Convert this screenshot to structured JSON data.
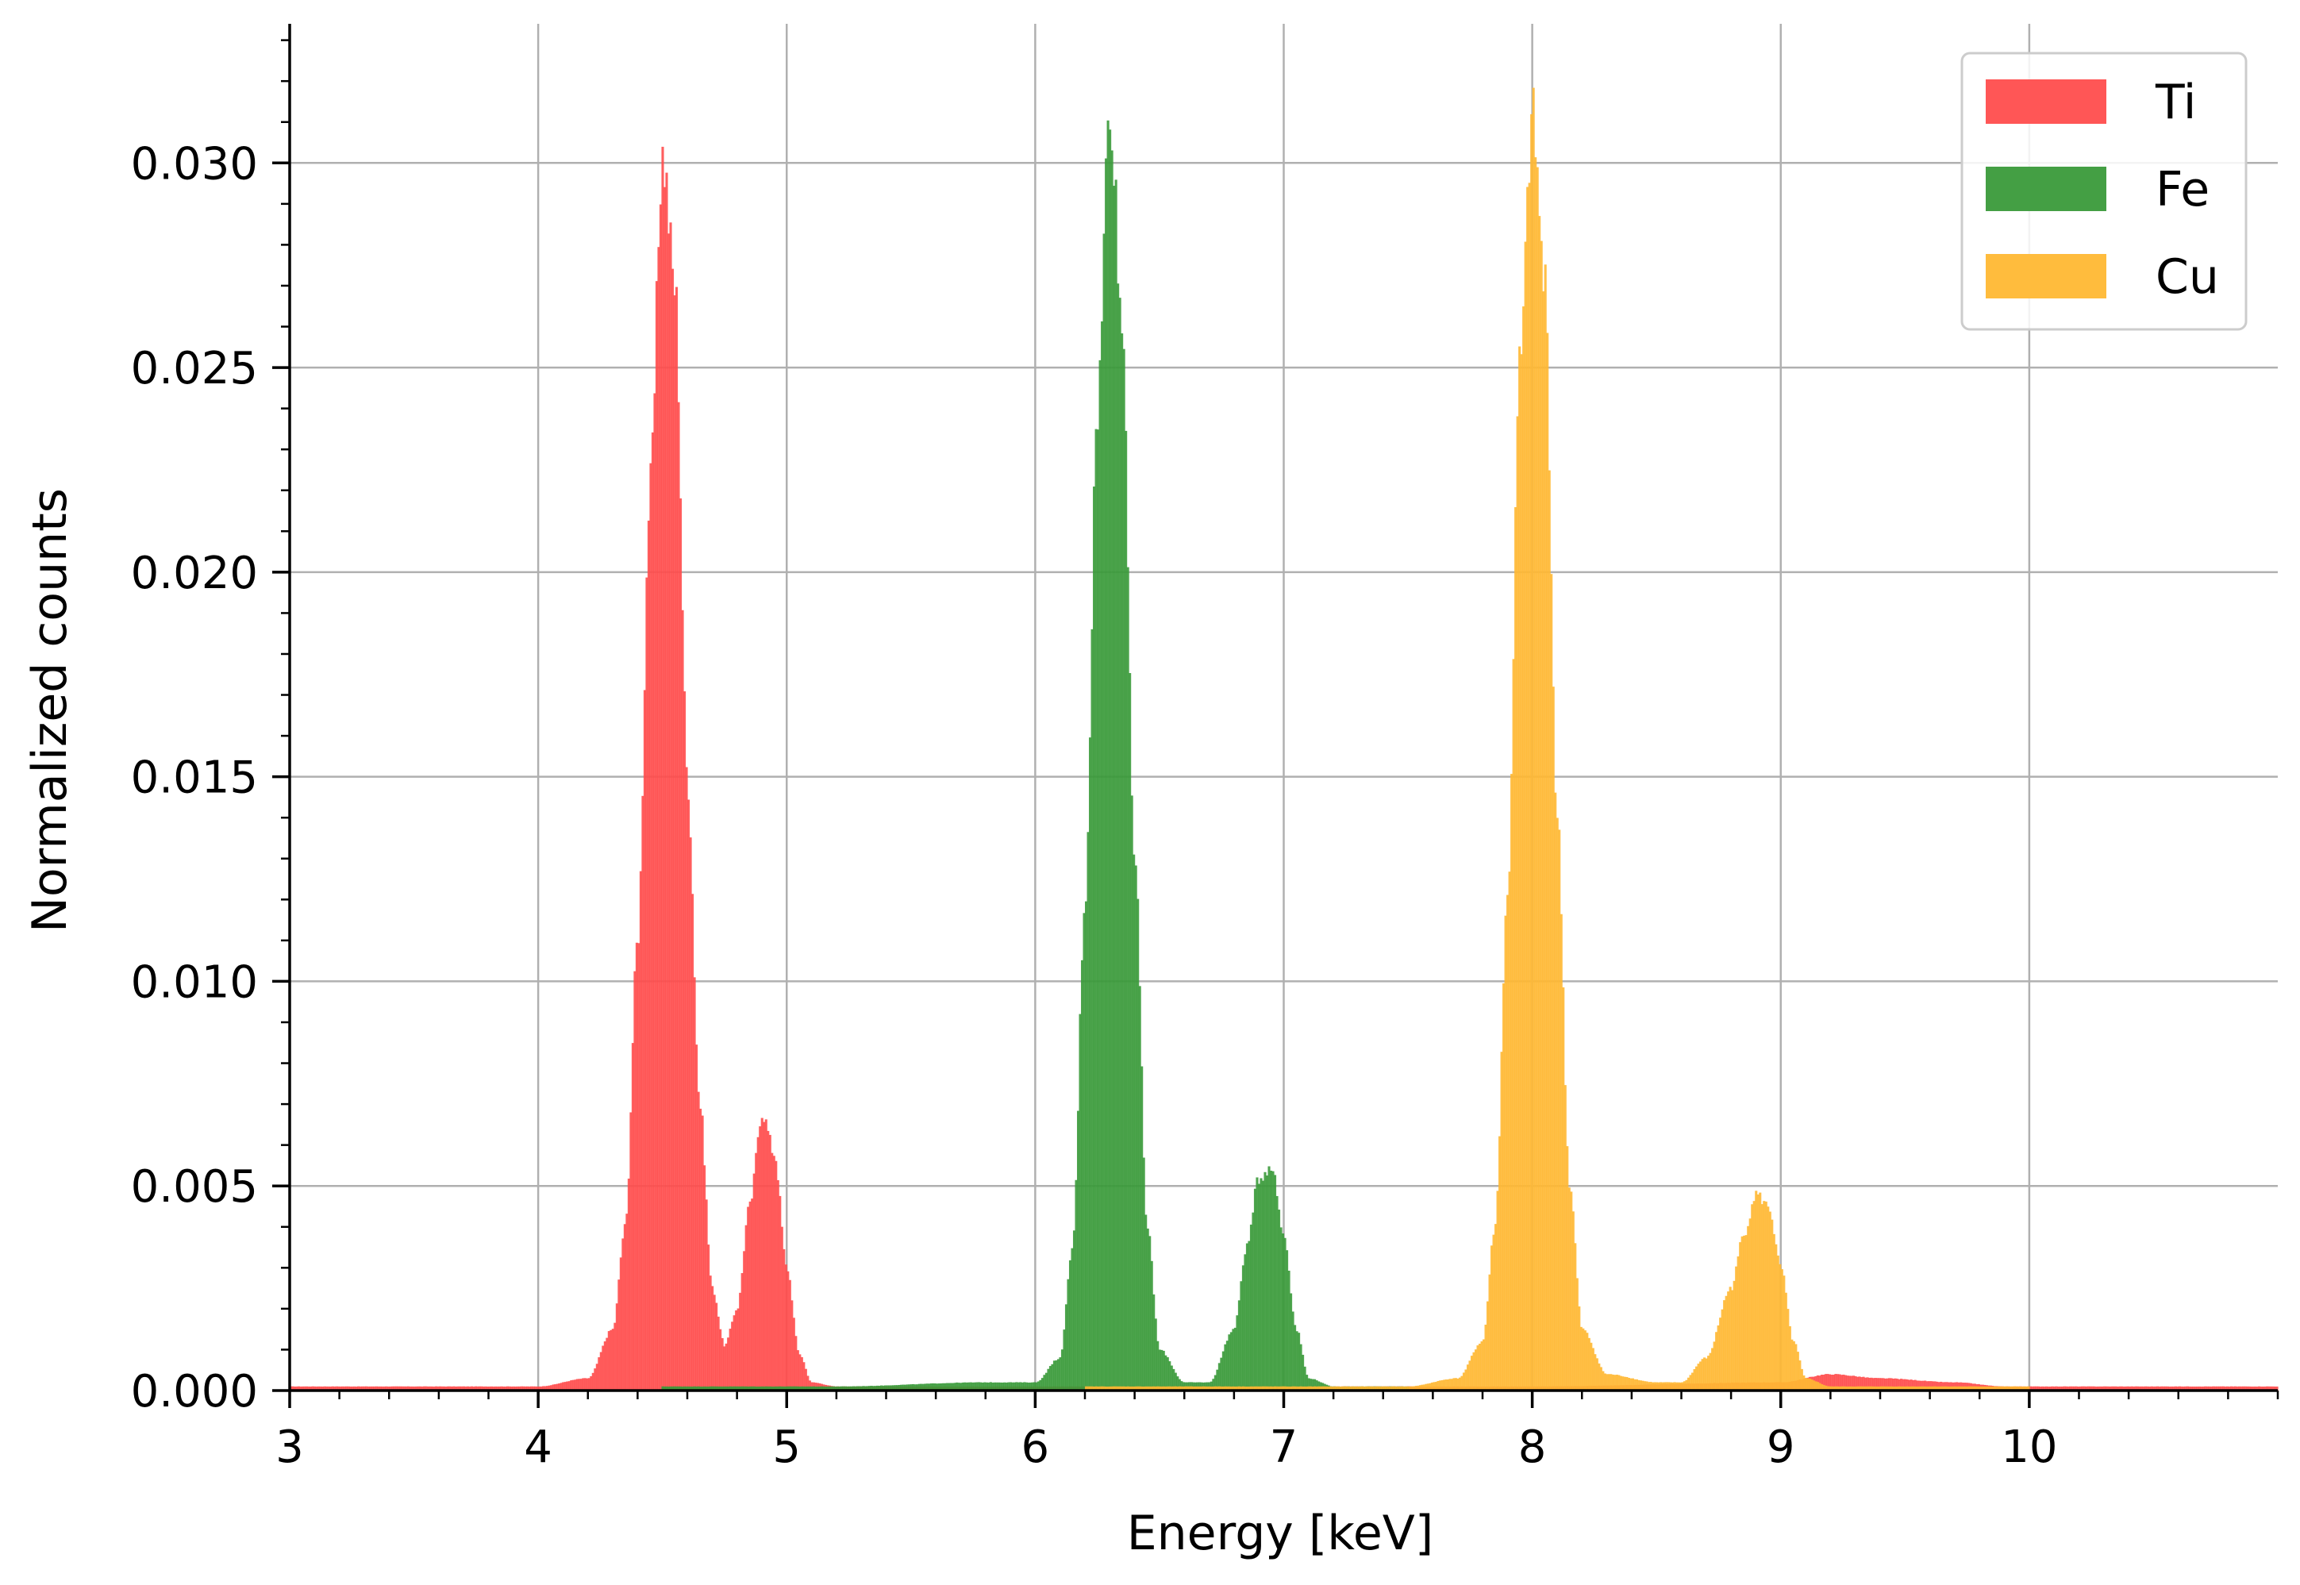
{
  "chart_data": {
    "type": "histogram",
    "xlabel": "Energy [keV]",
    "ylabel": "Normalized counts",
    "xlim": [
      3,
      11
    ],
    "ylim": [
      0,
      0.0334
    ],
    "grid": true,
    "legend_position": "top-right",
    "x_ticks": [
      "3",
      "4",
      "5",
      "6",
      "7",
      "8",
      "9",
      "10"
    ],
    "y_ticks": [
      "0.000",
      "0.005",
      "0.010",
      "0.015",
      "0.020",
      "0.025",
      "0.030"
    ],
    "series": [
      {
        "name": "Ti",
        "color": "#ff4d4d",
        "points": [
          [
            3.0,
            0.0001
          ],
          [
            3.5,
            0.0001
          ],
          [
            4.0,
            0.0001
          ],
          [
            4.2,
            0.0003
          ],
          [
            4.3,
            0.0015
          ],
          [
            4.35,
            0.004
          ],
          [
            4.4,
            0.011
          ],
          [
            4.45,
            0.022
          ],
          [
            4.5,
            0.0302
          ],
          [
            4.55,
            0.027
          ],
          [
            4.6,
            0.015
          ],
          [
            4.65,
            0.007
          ],
          [
            4.7,
            0.0025
          ],
          [
            4.75,
            0.0011
          ],
          [
            4.8,
            0.002
          ],
          [
            4.85,
            0.0045
          ],
          [
            4.9,
            0.0068
          ],
          [
            4.95,
            0.0058
          ],
          [
            5.0,
            0.003
          ],
          [
            5.05,
            0.0009
          ],
          [
            5.1,
            0.0002
          ],
          [
            5.2,
            0.0001
          ],
          [
            6.0,
            0.0001
          ],
          [
            8.0,
            0.0001
          ],
          [
            9.0,
            0.0002
          ],
          [
            9.2,
            0.0004
          ],
          [
            9.4,
            0.0003
          ],
          [
            9.7,
            0.0002
          ],
          [
            9.9,
            0.0001
          ],
          [
            10.5,
            0.0001
          ],
          [
            11.0,
            0.0001
          ]
        ]
      },
      {
        "name": "Fe",
        "color": "#3a9a3a",
        "points": [
          [
            4.5,
            0.0001
          ],
          [
            4.6,
            0.0001
          ],
          [
            5.2,
            0.0001
          ],
          [
            5.8,
            0.0002
          ],
          [
            6.0,
            0.0002
          ],
          [
            6.1,
            0.0008
          ],
          [
            6.15,
            0.0035
          ],
          [
            6.2,
            0.012
          ],
          [
            6.25,
            0.024
          ],
          [
            6.3,
            0.0316
          ],
          [
            6.35,
            0.026
          ],
          [
            6.4,
            0.013
          ],
          [
            6.45,
            0.004
          ],
          [
            6.5,
            0.001
          ],
          [
            6.6,
            0.0002
          ],
          [
            6.7,
            0.0002
          ],
          [
            6.8,
            0.0015
          ],
          [
            6.85,
            0.0035
          ],
          [
            6.9,
            0.0052
          ],
          [
            6.95,
            0.0055
          ],
          [
            7.0,
            0.0038
          ],
          [
            7.05,
            0.0015
          ],
          [
            7.1,
            0.0003
          ],
          [
            7.2,
            0.0001
          ],
          [
            7.5,
            0.0001
          ]
        ]
      },
      {
        "name": "Cu",
        "color": "#ffb833",
        "points": [
          [
            6.2,
            0.0001
          ],
          [
            7.0,
            0.0001
          ],
          [
            7.5,
            0.0001
          ],
          [
            7.7,
            0.0003
          ],
          [
            7.8,
            0.0012
          ],
          [
            7.85,
            0.004
          ],
          [
            7.9,
            0.012
          ],
          [
            7.95,
            0.025
          ],
          [
            8.0,
            0.031
          ],
          [
            8.05,
            0.027
          ],
          [
            8.1,
            0.014
          ],
          [
            8.15,
            0.005
          ],
          [
            8.2,
            0.0015
          ],
          [
            8.3,
            0.0004
          ],
          [
            8.5,
            0.0002
          ],
          [
            8.6,
            0.0002
          ],
          [
            8.7,
            0.0008
          ],
          [
            8.8,
            0.0025
          ],
          [
            8.85,
            0.0038
          ],
          [
            8.9,
            0.0048
          ],
          [
            8.95,
            0.0045
          ],
          [
            9.0,
            0.003
          ],
          [
            9.05,
            0.0012
          ],
          [
            9.1,
            0.0003
          ],
          [
            9.2,
            0.0001
          ],
          [
            10.0,
            0.0001
          ]
        ]
      }
    ]
  }
}
